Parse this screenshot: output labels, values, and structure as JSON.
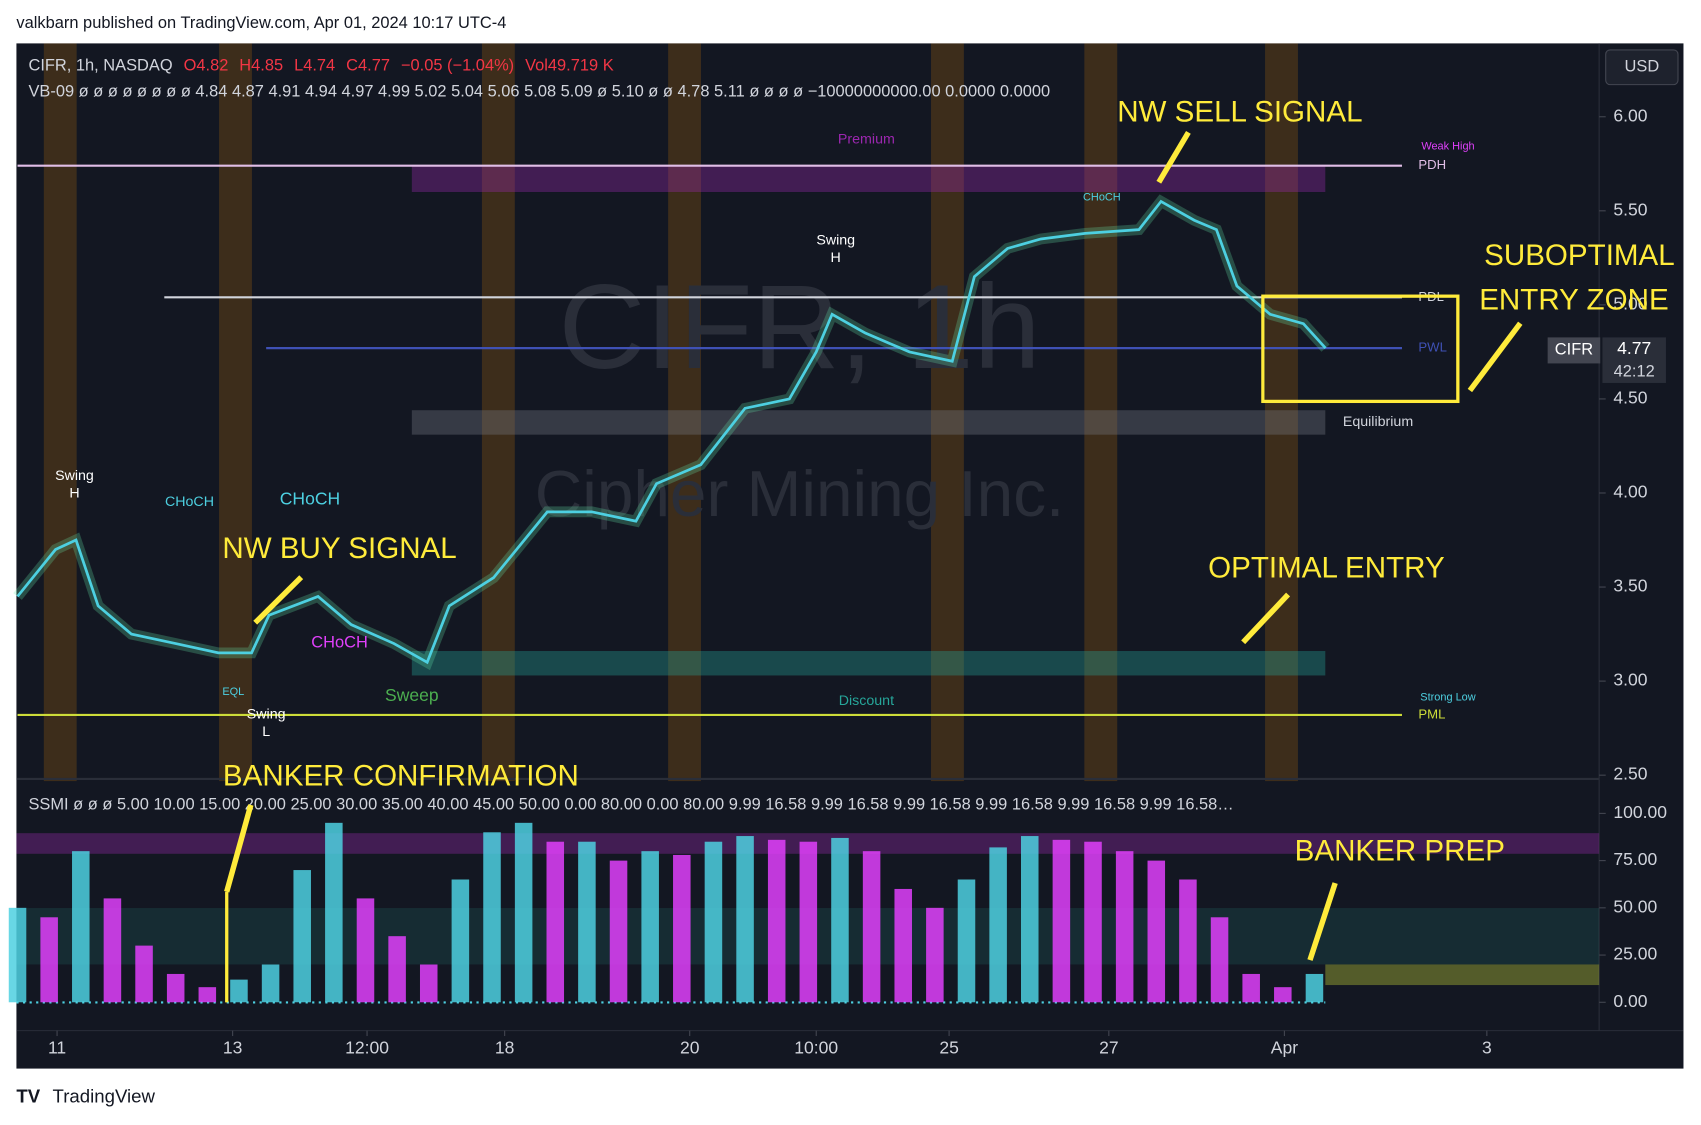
{
  "header": {
    "publisher": "valkbarn published on TradingView.com, Apr 01, 2024 10:17 UTC-4",
    "currency": "USD",
    "brand": "TradingView"
  },
  "legend": {
    "symbol": "CIFR, 1h, NASDAQ",
    "ohlc": [
      "O4.82",
      "H4.85",
      "L4.74",
      "C4.77",
      "−0.05 (−1.04%)",
      "Vol49.719 K"
    ],
    "vb": "VB-09  ø  ø  ø  ø  ø  ø  ø  ø  4.84  4.87  4.91  4.94  4.97  4.99  5.02  5.04  5.06  5.08  5.09  ø  5.10  ø  ø  4.78  5.11  ø  ø  ø  ø  −10000000000.00  0.0000  0.0000",
    "ssmi": "SSMI  ø  ø  ø  5.00  10.00  15.00  20.00  25.00  30.00  35.00  40.00  45.00  50.00  0.00  80.00  0.00  80.00  9.99  16.58  9.99  16.58  9.99  16.58  9.99  16.58  9.99  16.58  9.99  16.58…"
  },
  "watermark": {
    "symbol": "CIFR, 1h",
    "company": "Cipher Mining Inc."
  },
  "price_tag": {
    "symbol": "CIFR",
    "price": "4.77",
    "countdown": "42:12"
  },
  "annotations": {
    "sell": "NW SELL SIGNAL",
    "sub1": "SUBOPTIMAL",
    "sub2": "ENTRY ZONE",
    "buy": "NW BUY SIGNAL",
    "optimal": "OPTIMAL ENTRY",
    "confirm": "BANKER CONFIRMATION",
    "prep": "BANKER PREP"
  },
  "structure_labels": {
    "swing_h1": "Swing",
    "h1": "H",
    "swing_h2": "Swing",
    "h2": "H",
    "choch1": "CHoCH",
    "choch2": "CHoCH",
    "choch3": "CHoCH",
    "choch4": "CHoCH",
    "swing_l": "Swing",
    "l": "L",
    "eql": "EQL",
    "sweep": "Sweep",
    "weak_high": "Weak High",
    "strong_low": "Strong Low"
  },
  "chart_data": [
    {
      "type": "line",
      "xlim": [
        0,
        100
      ],
      "xticks": [
        {
          "value": 2.5,
          "label": "11"
        },
        {
          "value": 13.6,
          "label": "13"
        },
        {
          "value": 22.1,
          "label": "12:00"
        },
        {
          "value": 30.8,
          "label": "18"
        },
        {
          "value": 42.5,
          "label": "20"
        },
        {
          "value": 50.5,
          "label": "10:00"
        },
        {
          "value": 58.9,
          "label": "25"
        },
        {
          "value": 69,
          "label": "27"
        },
        {
          "value": 80.1,
          "label": "Apr"
        },
        {
          "value": 92.9,
          "label": "3"
        }
      ],
      "ylim": [
        2.48,
        6.39
      ],
      "yticks": [
        {
          "value": 2.5,
          "label": "2.50"
        },
        {
          "value": 3,
          "label": "3.00"
        },
        {
          "value": 3.5,
          "label": "3.50"
        },
        {
          "value": 4,
          "label": "4.00"
        },
        {
          "value": 4.5,
          "label": "4.50"
        },
        {
          "value": 5,
          "label": "5.00"
        },
        {
          "value": 5.5,
          "label": "5.50"
        },
        {
          "value": 6,
          "label": "6.00"
        }
      ],
      "series": [
        {
          "name": "CIFR",
          "color": "#4dd0e1",
          "x": [
            0,
            2.4,
            3.7,
            5.1,
            7.2,
            10,
            12.7,
            14.8,
            15.9,
            19,
            21.1,
            23.8,
            25.9,
            27.3,
            30.1,
            33.5,
            36.3,
            39.1,
            40.4,
            43.2,
            46,
            48.8,
            50.5,
            51.5,
            53.6,
            56.4,
            59.1,
            60.5,
            62.6,
            64.7,
            67.5,
            70.9,
            72.3,
            74.4,
            75.8,
            77.1,
            79.2,
            81.3,
            82.7
          ],
          "values": [
            3.45,
            3.7,
            3.75,
            3.4,
            3.25,
            3.2,
            3.15,
            3.15,
            3.35,
            3.45,
            3.3,
            3.2,
            3.1,
            3.4,
            3.55,
            3.9,
            3.9,
            3.85,
            4.05,
            4.15,
            4.45,
            4.5,
            4.75,
            4.95,
            4.85,
            4.75,
            4.7,
            5.15,
            5.3,
            5.35,
            5.38,
            5.4,
            5.55,
            5.45,
            5.4,
            5.1,
            4.95,
            4.9,
            4.77
          ]
        }
      ],
      "levels": [
        {
          "name": "PDH",
          "value": 5.74,
          "color": "#e1bee7"
        },
        {
          "name": "PDL",
          "value": 5.04,
          "color": "#d1d4dc"
        },
        {
          "name": "PWL",
          "value": 4.77,
          "color": "#3f51b5"
        },
        {
          "name": "PML",
          "value": 2.82,
          "color": "#cddc39"
        }
      ],
      "zones": [
        {
          "name": "Premium",
          "from": 5.6,
          "to": 5.74,
          "color": "#9c27b0"
        },
        {
          "name": "Equilibrium",
          "from": 4.31,
          "to": 4.44,
          "color": "#787b86"
        },
        {
          "name": "Discount",
          "from": 3.03,
          "to": 3.16,
          "color": "#26a69a"
        }
      ]
    },
    {
      "type": "bar",
      "xlim": [
        0,
        100
      ],
      "ylim": [
        -15,
        112.5
      ],
      "yticks": [
        {
          "value": 0,
          "label": "0.00"
        },
        {
          "value": 25,
          "label": "25.00"
        },
        {
          "value": 50,
          "label": "50.00"
        },
        {
          "value": 75,
          "label": "75.00"
        },
        {
          "value": 100,
          "label": "100.00"
        }
      ],
      "series": [
        {
          "name": "SSMI",
          "color": "#4dd0e1",
          "x": [
            0,
            2,
            4,
            6,
            8,
            10,
            12,
            14,
            16,
            18,
            20,
            22,
            24,
            26,
            28,
            30,
            32,
            34,
            36,
            38,
            40,
            42,
            44,
            46,
            48,
            50,
            52,
            54,
            56,
            58,
            60,
            62,
            64,
            66,
            68,
            70,
            72,
            74,
            76,
            78,
            80,
            82
          ],
          "values": [
            50,
            45,
            80,
            55,
            30,
            15,
            8,
            12,
            20,
            70,
            95,
            55,
            35,
            20,
            65,
            90,
            95,
            85,
            85,
            75,
            80,
            78,
            85,
            88,
            86,
            85,
            87,
            80,
            60,
            50,
            65,
            82,
            88,
            86,
            85,
            80,
            75,
            65,
            45,
            15,
            8,
            15
          ]
        }
      ]
    }
  ]
}
